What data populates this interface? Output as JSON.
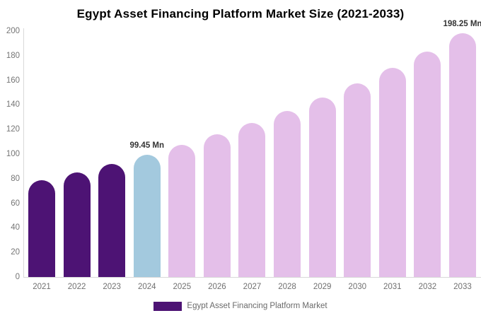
{
  "chart_data": {
    "type": "bar",
    "title": "Egypt Asset Financing Platform Market Size (2021-2033)",
    "categories": [
      "2021",
      "2022",
      "2023",
      "2024",
      "2025",
      "2026",
      "2027",
      "2028",
      "2029",
      "2030",
      "2031",
      "2032",
      "2033"
    ],
    "series": [
      {
        "name": "Egypt Asset Financing Platform Market",
        "values": [
          78.9,
          85.2,
          92.1,
          99.45,
          107.4,
          115.9,
          125.2,
          135.1,
          145.9,
          157.5,
          170.1,
          183.6,
          198.25
        ]
      }
    ],
    "unit": "Mn",
    "ylim": [
      0,
      200
    ],
    "yticks": [
      0,
      20,
      40,
      60,
      80,
      100,
      120,
      140,
      160,
      180,
      200
    ],
    "xlabel": "",
    "ylabel": "",
    "grid": false,
    "legend_position": "bottom",
    "bar_colors": [
      "#4D1374",
      "#4D1374",
      "#4D1374",
      "#A3C9DE",
      "#E4BFE9",
      "#E4BFE9",
      "#E4BFE9",
      "#E4BFE9",
      "#E4BFE9",
      "#E4BFE9",
      "#E4BFE9",
      "#E4BFE9",
      "#E4BFE9"
    ],
    "annotations": [
      {
        "category": "2024",
        "text": "99.45 Mn"
      },
      {
        "category": "2033",
        "text": "198.25 Mn"
      }
    ]
  },
  "legend": {
    "label": "Egypt Asset Financing Platform Market",
    "swatch_color": "#4D1374"
  },
  "colors": {
    "historical_bar": "#4D1374",
    "highlight_bar": "#A3C9DE",
    "forecast_bar": "#E4BFE9",
    "axis_line": "#d9d9d9",
    "tick_text": "#757575",
    "annotation_text": "#333333",
    "title_text": "#000000"
  }
}
